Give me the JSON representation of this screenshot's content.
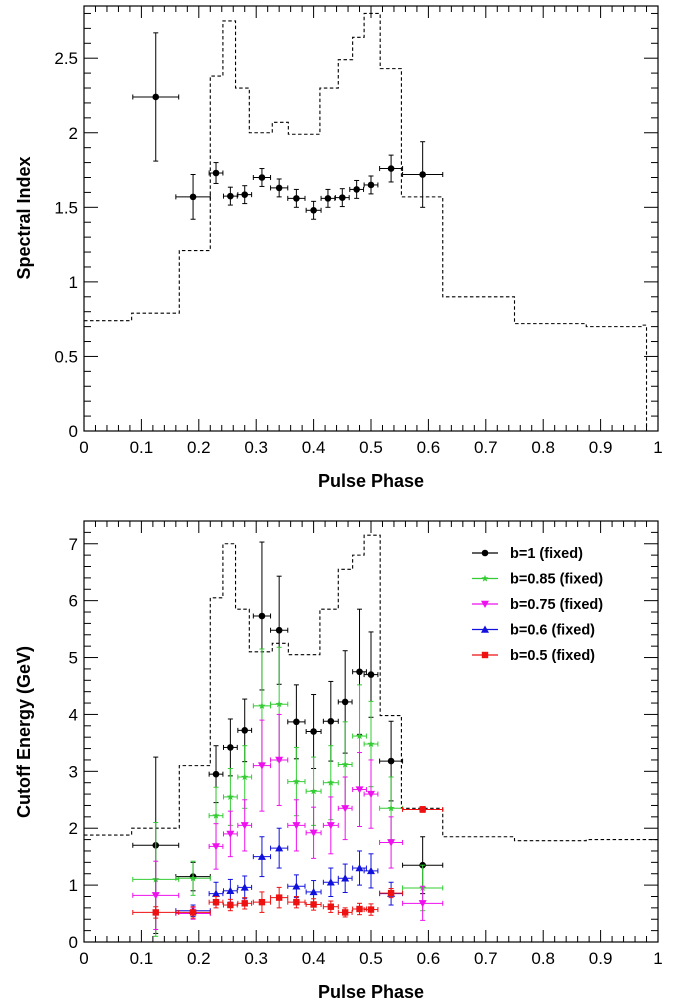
{
  "chart_data": [
    {
      "type": "scatter",
      "xlabel": "Pulse Phase",
      "ylabel": "Spectral Index",
      "xlim": [
        0,
        1
      ],
      "ylim": [
        0,
        2.85
      ],
      "xticks": [
        0,
        0.1,
        0.2,
        0.3,
        0.4,
        0.5,
        0.6,
        0.7,
        0.8,
        0.9,
        1
      ],
      "xtick_labels": [
        "0",
        "0.1",
        "0.2",
        "0.3",
        "0.4",
        "0.5",
        "0.6",
        "0.7",
        "0.8",
        "0.9",
        "1"
      ],
      "yticks": [
        0,
        0.5,
        1,
        1.5,
        2,
        2.5
      ],
      "ytick_labels": [
        "0",
        "0.5",
        "1",
        "1.5",
        "2",
        "2.5"
      ],
      "grid": false,
      "series": [
        {
          "color": "#000000",
          "marker": "circle",
          "points": [
            {
              "x": 0.125,
              "y": 2.24,
              "xerr": 0.04,
              "yerr": 0.43
            },
            {
              "x": 0.19,
              "y": 1.57,
              "xerr": 0.03,
              "yerr": 0.15
            },
            {
              "x": 0.23,
              "y": 1.73,
              "xerr": 0.012,
              "yerr": 0.07
            },
            {
              "x": 0.255,
              "y": 1.575,
              "xerr": 0.012,
              "yerr": 0.06
            },
            {
              "x": 0.28,
              "y": 1.585,
              "xerr": 0.012,
              "yerr": 0.06
            },
            {
              "x": 0.31,
              "y": 1.7,
              "xerr": 0.015,
              "yerr": 0.06
            },
            {
              "x": 0.34,
              "y": 1.63,
              "xerr": 0.015,
              "yerr": 0.06
            },
            {
              "x": 0.37,
              "y": 1.56,
              "xerr": 0.015,
              "yerr": 0.06
            },
            {
              "x": 0.4,
              "y": 1.48,
              "xerr": 0.013,
              "yerr": 0.06
            },
            {
              "x": 0.425,
              "y": 1.56,
              "xerr": 0.012,
              "yerr": 0.06
            },
            {
              "x": 0.45,
              "y": 1.565,
              "xerr": 0.012,
              "yerr": 0.06
            },
            {
              "x": 0.475,
              "y": 1.62,
              "xerr": 0.012,
              "yerr": 0.06
            },
            {
              "x": 0.5,
              "y": 1.65,
              "xerr": 0.012,
              "yerr": 0.06
            },
            {
              "x": 0.535,
              "y": 1.76,
              "xerr": 0.02,
              "yerr": 0.09
            },
            {
              "x": 0.59,
              "y": 1.72,
              "xerr": 0.035,
              "yerr": 0.22
            }
          ]
        }
      ],
      "histogram": {
        "style": "dashed",
        "color": "#000000",
        "edges": [
          0,
          0.083,
          0.166,
          0.22,
          0.242,
          0.264,
          0.288,
          0.328,
          0.356,
          0.411,
          0.443,
          0.468,
          0.488,
          0.516,
          0.553,
          0.625,
          0.75,
          0.875,
          0.972,
          0.98
        ],
        "values": [
          0.74,
          0.79,
          1.21,
          2.38,
          2.75,
          2.3,
          2.0,
          2.07,
          1.99,
          2.3,
          2.49,
          2.64,
          2.8,
          2.43,
          1.57,
          0.9,
          0.72,
          0.7,
          0.71,
          0.0
        ]
      }
    },
    {
      "type": "scatter",
      "xlabel": "Pulse Phase",
      "ylabel": "Cutoff Energy (GeV)",
      "xlim": [
        0,
        1
      ],
      "ylim": [
        0,
        7.4
      ],
      "xticks": [
        0,
        0.1,
        0.2,
        0.3,
        0.4,
        0.5,
        0.6,
        0.7,
        0.8,
        0.9,
        1
      ],
      "xtick_labels": [
        "0",
        "0.1",
        "0.2",
        "0.3",
        "0.4",
        "0.5",
        "0.6",
        "0.7",
        "0.8",
        "0.9",
        "1"
      ],
      "yticks": [
        0,
        1,
        2,
        3,
        4,
        5,
        6,
        7
      ],
      "ytick_labels": [
        "0",
        "1",
        "2",
        "3",
        "4",
        "5",
        "6",
        "7"
      ],
      "grid": false,
      "legend_position": "top-right",
      "series": [
        {
          "name": "b=1 (fixed)",
          "color": "#000000",
          "marker": "circle",
          "points": [
            {
              "x": 0.125,
              "y": 1.7,
              "xerr": 0.04,
              "yerr": 1.55
            },
            {
              "x": 0.19,
              "y": 1.15,
              "xerr": 0.03,
              "yerr": 0.25
            },
            {
              "x": 0.23,
              "y": 2.95,
              "xerr": 0.012,
              "yerr": 0.5
            },
            {
              "x": 0.255,
              "y": 3.42,
              "xerr": 0.012,
              "yerr": 0.5
            },
            {
              "x": 0.28,
              "y": 3.72,
              "xerr": 0.012,
              "yerr": 0.55
            },
            {
              "x": 0.31,
              "y": 5.73,
              "xerr": 0.015,
              "yerr": 1.3
            },
            {
              "x": 0.34,
              "y": 5.48,
              "xerr": 0.015,
              "yerr": 0.95
            },
            {
              "x": 0.37,
              "y": 3.87,
              "xerr": 0.015,
              "yerr": 0.65
            },
            {
              "x": 0.4,
              "y": 3.7,
              "xerr": 0.013,
              "yerr": 0.65
            },
            {
              "x": 0.43,
              "y": 3.88,
              "xerr": 0.013,
              "yerr": 0.7
            },
            {
              "x": 0.455,
              "y": 4.22,
              "xerr": 0.012,
              "yerr": 0.9
            },
            {
              "x": 0.48,
              "y": 4.75,
              "xerr": 0.012,
              "yerr": 1.1
            },
            {
              "x": 0.5,
              "y": 4.7,
              "xerr": 0.012,
              "yerr": 0.75
            },
            {
              "x": 0.535,
              "y": 3.18,
              "xerr": 0.02,
              "yerr": 0.7
            },
            {
              "x": 0.59,
              "y": 1.35,
              "xerr": 0.035,
              "yerr": 0.5
            }
          ]
        },
        {
          "name": "b=0.85 (fixed)",
          "color": "#33cc33",
          "marker": "star",
          "points": [
            {
              "x": 0.125,
              "y": 1.1,
              "xerr": 0.04,
              "yerr": 1.0
            },
            {
              "x": 0.19,
              "y": 1.12,
              "xerr": 0.03,
              "yerr": 0.3
            },
            {
              "x": 0.23,
              "y": 2.22,
              "xerr": 0.012,
              "yerr": 0.5
            },
            {
              "x": 0.255,
              "y": 2.55,
              "xerr": 0.012,
              "yerr": 0.5
            },
            {
              "x": 0.28,
              "y": 2.9,
              "xerr": 0.012,
              "yerr": 0.55
            },
            {
              "x": 0.31,
              "y": 4.15,
              "xerr": 0.015,
              "yerr": 1.0
            },
            {
              "x": 0.34,
              "y": 4.18,
              "xerr": 0.015,
              "yerr": 1.0
            },
            {
              "x": 0.37,
              "y": 2.82,
              "xerr": 0.015,
              "yerr": 0.6
            },
            {
              "x": 0.4,
              "y": 2.65,
              "xerr": 0.013,
              "yerr": 0.6
            },
            {
              "x": 0.43,
              "y": 2.8,
              "xerr": 0.013,
              "yerr": 0.65
            },
            {
              "x": 0.455,
              "y": 3.12,
              "xerr": 0.012,
              "yerr": 0.75
            },
            {
              "x": 0.48,
              "y": 3.62,
              "xerr": 0.012,
              "yerr": 0.9
            },
            {
              "x": 0.5,
              "y": 3.48,
              "xerr": 0.012,
              "yerr": 0.75
            },
            {
              "x": 0.535,
              "y": 2.35,
              "xerr": 0.02,
              "yerr": 0.55
            },
            {
              "x": 0.59,
              "y": 0.95,
              "xerr": 0.035,
              "yerr": 0.4
            }
          ]
        },
        {
          "name": "b=0.75 (fixed)",
          "color": "#ee11ee",
          "marker": "triangle-down",
          "points": [
            {
              "x": 0.125,
              "y": 0.82,
              "xerr": 0.04,
              "yerr": 0.6
            },
            {
              "x": 0.19,
              "y": 0.5,
              "xerr": 0.03,
              "yerr": 0.1
            },
            {
              "x": 0.23,
              "y": 1.68,
              "xerr": 0.012,
              "yerr": 0.4
            },
            {
              "x": 0.255,
              "y": 1.9,
              "xerr": 0.012,
              "yerr": 0.4
            },
            {
              "x": 0.28,
              "y": 2.05,
              "xerr": 0.012,
              "yerr": 0.45
            },
            {
              "x": 0.31,
              "y": 3.1,
              "xerr": 0.015,
              "yerr": 0.8
            },
            {
              "x": 0.34,
              "y": 3.2,
              "xerr": 0.015,
              "yerr": 0.8
            },
            {
              "x": 0.37,
              "y": 2.05,
              "xerr": 0.015,
              "yerr": 0.45
            },
            {
              "x": 0.4,
              "y": 1.92,
              "xerr": 0.013,
              "yerr": 0.45
            },
            {
              "x": 0.43,
              "y": 2.05,
              "xerr": 0.013,
              "yerr": 0.5
            },
            {
              "x": 0.455,
              "y": 2.35,
              "xerr": 0.012,
              "yerr": 0.55
            },
            {
              "x": 0.48,
              "y": 2.68,
              "xerr": 0.012,
              "yerr": 0.65
            },
            {
              "x": 0.5,
              "y": 2.6,
              "xerr": 0.012,
              "yerr": 0.6
            },
            {
              "x": 0.535,
              "y": 1.75,
              "xerr": 0.02,
              "yerr": 0.45
            },
            {
              "x": 0.59,
              "y": 0.68,
              "xerr": 0.035,
              "yerr": 0.3
            }
          ]
        },
        {
          "name": "b=0.6 (fixed)",
          "color": "#1111dd",
          "marker": "triangle-up",
          "points": [
            {
              "x": 0.19,
              "y": 0.55,
              "xerr": 0.03,
              "yerr": 0.1
            },
            {
              "x": 0.23,
              "y": 0.85,
              "xerr": 0.012,
              "yerr": 0.2
            },
            {
              "x": 0.255,
              "y": 0.9,
              "xerr": 0.012,
              "yerr": 0.2
            },
            {
              "x": 0.28,
              "y": 0.96,
              "xerr": 0.012,
              "yerr": 0.2
            },
            {
              "x": 0.31,
              "y": 1.5,
              "xerr": 0.015,
              "yerr": 0.35
            },
            {
              "x": 0.34,
              "y": 1.65,
              "xerr": 0.015,
              "yerr": 0.35
            },
            {
              "x": 0.37,
              "y": 0.98,
              "xerr": 0.015,
              "yerr": 0.2
            },
            {
              "x": 0.4,
              "y": 0.88,
              "xerr": 0.013,
              "yerr": 0.2
            },
            {
              "x": 0.43,
              "y": 1.05,
              "xerr": 0.013,
              "yerr": 0.25
            },
            {
              "x": 0.455,
              "y": 1.12,
              "xerr": 0.012,
              "yerr": 0.25
            },
            {
              "x": 0.48,
              "y": 1.3,
              "xerr": 0.012,
              "yerr": 0.3
            },
            {
              "x": 0.5,
              "y": 1.25,
              "xerr": 0.012,
              "yerr": 0.3
            },
            {
              "x": 0.535,
              "y": 0.85,
              "xerr": 0.02,
              "yerr": 0.2
            }
          ]
        },
        {
          "name": "b=0.5 (fixed)",
          "color": "#ee1111",
          "marker": "square",
          "points": [
            {
              "x": 0.125,
              "y": 0.52,
              "xerr": 0.04,
              "yerr": 0.1
            },
            {
              "x": 0.19,
              "y": 0.52,
              "xerr": 0.03,
              "yerr": 0.1
            },
            {
              "x": 0.23,
              "y": 0.7,
              "xerr": 0.012,
              "yerr": 0.1
            },
            {
              "x": 0.255,
              "y": 0.65,
              "xerr": 0.012,
              "yerr": 0.1
            },
            {
              "x": 0.28,
              "y": 0.68,
              "xerr": 0.012,
              "yerr": 0.1
            },
            {
              "x": 0.31,
              "y": 0.7,
              "xerr": 0.015,
              "yerr": 0.18
            },
            {
              "x": 0.34,
              "y": 0.78,
              "xerr": 0.015,
              "yerr": 0.18
            },
            {
              "x": 0.37,
              "y": 0.7,
              "xerr": 0.015,
              "yerr": 0.1
            },
            {
              "x": 0.4,
              "y": 0.66,
              "xerr": 0.013,
              "yerr": 0.1
            },
            {
              "x": 0.43,
              "y": 0.62,
              "xerr": 0.013,
              "yerr": 0.1
            },
            {
              "x": 0.455,
              "y": 0.52,
              "xerr": 0.012,
              "yerr": 0.08
            },
            {
              "x": 0.48,
              "y": 0.58,
              "xerr": 0.012,
              "yerr": 0.1
            },
            {
              "x": 0.5,
              "y": 0.57,
              "xerr": 0.012,
              "yerr": 0.1
            },
            {
              "x": 0.535,
              "y": 0.86,
              "xerr": 0.02,
              "yerr": 0.08
            },
            {
              "x": 0.59,
              "y": 2.33,
              "xerr": 0.035,
              "yerr": 0.05
            }
          ]
        }
      ],
      "histogram": {
        "style": "dashed",
        "color": "#000000",
        "edges": [
          0,
          0.083,
          0.166,
          0.22,
          0.242,
          0.264,
          0.288,
          0.328,
          0.356,
          0.411,
          0.443,
          0.468,
          0.488,
          0.516,
          0.553,
          0.625,
          0.75,
          0.875,
          1.0
        ],
        "values": [
          1.88,
          2.0,
          3.1,
          6.05,
          7.0,
          5.85,
          5.1,
          5.25,
          5.05,
          5.85,
          6.55,
          6.8,
          7.15,
          3.98,
          2.35,
          1.85,
          1.78,
          1.8
        ]
      }
    }
  ]
}
